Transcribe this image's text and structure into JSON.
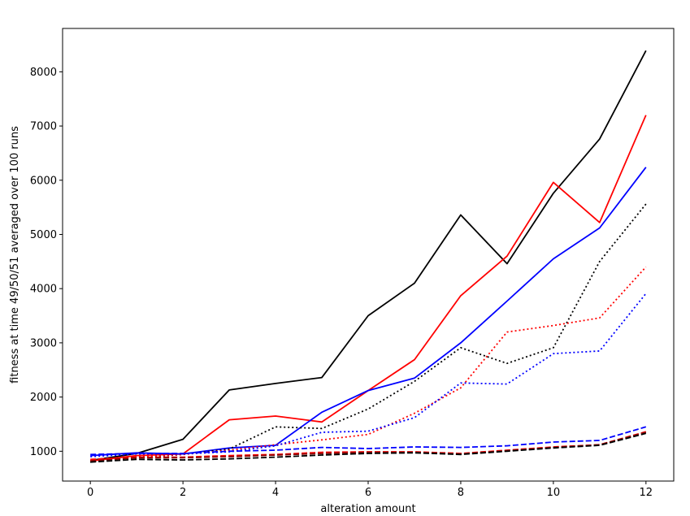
{
  "chart_data": {
    "type": "line",
    "title": "",
    "xlabel": "alteration amount",
    "ylabel": "fitness at time 49/50/51 averaged over 100 runs",
    "xlim": [
      -0.6,
      12.6
    ],
    "ylim": [
      450,
      8800
    ],
    "xticks": [
      0,
      2,
      4,
      6,
      8,
      10,
      12
    ],
    "yticks": [
      1000,
      2000,
      3000,
      4000,
      5000,
      6000,
      7000,
      8000
    ],
    "grid": false,
    "legend": "none",
    "x": [
      0,
      1,
      2,
      3,
      4,
      5,
      6,
      7,
      8,
      9,
      10,
      11,
      12
    ],
    "series": [
      {
        "color": "#000000",
        "style": "solid",
        "values": [
          830,
          960,
          1220,
          2130,
          2250,
          2360,
          3500,
          4100,
          5360,
          4460,
          5760,
          6760,
          8390
        ]
      },
      {
        "color": "#ff0000",
        "style": "solid",
        "values": [
          820,
          920,
          950,
          1580,
          1650,
          1540,
          2120,
          2690,
          3870,
          4600,
          5960,
          5220,
          7200
        ]
      },
      {
        "color": "#0000ff",
        "style": "solid",
        "values": [
          920,
          970,
          950,
          1060,
          1110,
          1720,
          2120,
          2350,
          3000,
          3770,
          4550,
          5120,
          6240
        ]
      },
      {
        "color": "#000000",
        "style": "dotted",
        "values": [
          800,
          880,
          940,
          1040,
          1450,
          1420,
          1780,
          2290,
          2910,
          2620,
          2910,
          4500,
          5560
        ]
      },
      {
        "color": "#ff0000",
        "style": "dotted",
        "values": [
          830,
          900,
          940,
          1020,
          1120,
          1210,
          1310,
          1700,
          2170,
          3200,
          3320,
          3460,
          4400
        ]
      },
      {
        "color": "#0000ff",
        "style": "dotted",
        "values": [
          900,
          950,
          950,
          990,
          1100,
          1350,
          1370,
          1620,
          2260,
          2240,
          2800,
          2850,
          3910
        ]
      },
      {
        "color": "#0000ff",
        "style": "dashed",
        "values": [
          940,
          960,
          960,
          1000,
          1020,
          1070,
          1050,
          1080,
          1070,
          1100,
          1170,
          1200,
          1450
        ]
      },
      {
        "color": "#ff0000",
        "style": "dashed",
        "values": [
          850,
          890,
          890,
          920,
          940,
          980,
          990,
          990,
          960,
          1020,
          1080,
          1120,
          1360
        ]
      },
      {
        "color": "#8b0000",
        "style": "dashed",
        "values": [
          820,
          880,
          880,
          900,
          930,
          960,
          980,
          980,
          950,
          1010,
          1070,
          1120,
          1350
        ]
      },
      {
        "color": "#000000",
        "style": "dashed",
        "values": [
          800,
          850,
          840,
          860,
          890,
          930,
          960,
          970,
          940,
          1000,
          1060,
          1110,
          1330
        ]
      }
    ]
  }
}
